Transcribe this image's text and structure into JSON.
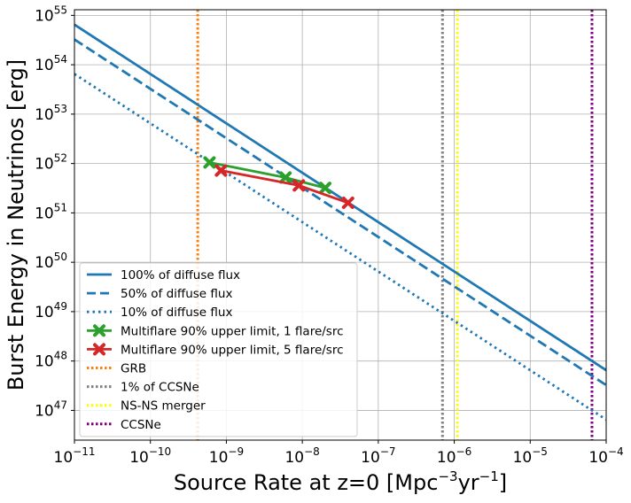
{
  "chart_data": {
    "type": "line",
    "xlabel_main": "Source Rate at z=0 [Mpc",
    "xlabel_sup1": "−3",
    "xlabel_mid": "yr",
    "xlabel_sup2": "−1",
    "xlabel_end": "]",
    "ylabel": "Burst Energy in Neutrinos [erg]",
    "x_scale": "log",
    "y_scale": "log",
    "xlim": [
      1e-11,
      0.0001
    ],
    "ylim": [
      2.5e+46,
      1.3e+55
    ],
    "grid": true,
    "legend_position": "lower-left",
    "x_ticks": [
      {
        "exp": -11,
        "base": "10",
        "sup": "−11"
      },
      {
        "exp": -10,
        "base": "10",
        "sup": "−10"
      },
      {
        "exp": -9,
        "base": "10",
        "sup": "−9"
      },
      {
        "exp": -8,
        "base": "10",
        "sup": "−8"
      },
      {
        "exp": -7,
        "base": "10",
        "sup": "−7"
      },
      {
        "exp": -6,
        "base": "10",
        "sup": "−6"
      },
      {
        "exp": -5,
        "base": "10",
        "sup": "−5"
      },
      {
        "exp": -4,
        "base": "10",
        "sup": "−4"
      }
    ],
    "y_ticks": [
      {
        "exp": 47,
        "base": "10",
        "sup": "47"
      },
      {
        "exp": 48,
        "base": "10",
        "sup": "48"
      },
      {
        "exp": 49,
        "base": "10",
        "sup": "49"
      },
      {
        "exp": 50,
        "base": "10",
        "sup": "50"
      },
      {
        "exp": 51,
        "base": "10",
        "sup": "51"
      },
      {
        "exp": 52,
        "base": "10",
        "sup": "52"
      },
      {
        "exp": 53,
        "base": "10",
        "sup": "53"
      },
      {
        "exp": 54,
        "base": "10",
        "sup": "54"
      },
      {
        "exp": 55,
        "base": "10",
        "sup": "55"
      }
    ],
    "series": [
      {
        "name": "100% of diffuse flux",
        "style": "solid",
        "color": "#1f77b4",
        "x": [
          1e-11,
          0.0001
        ],
        "y": [
          6.5e+54,
          6.5e+47
        ]
      },
      {
        "name": "50% of diffuse flux",
        "style": "dashed",
        "color": "#1f77b4",
        "x": [
          1e-11,
          0.0001
        ],
        "y": [
          3.25e+54,
          3.25e+47
        ]
      },
      {
        "name": "10% of diffuse flux",
        "style": "dotted",
        "color": "#1f77b4",
        "x": [
          1e-11,
          0.0001
        ],
        "y": [
          6.5e+53,
          6.5e+46
        ]
      },
      {
        "name": "Multiflare 90% upper limit, 1 flare/src",
        "style": "solid-marker",
        "color": "#2ca02c",
        "x": [
          6e-10,
          6e-09,
          2e-08
        ],
        "y": [
          1.05e+52,
          5.2e+51,
          3.2e+51
        ]
      },
      {
        "name": "Multiflare 90% upper limit, 5 flare/src",
        "style": "solid-marker",
        "color": "#d62728",
        "x": [
          8.5e-10,
          9e-09,
          4e-08
        ],
        "y": [
          7.2e+51,
          3.6e+51,
          1.6e+51
        ]
      }
    ],
    "vlines": [
      {
        "name": "GRB",
        "x": 4.2e-10,
        "color": "#ff7f0e"
      },
      {
        "name": "1% of CCSNe",
        "x": 7e-07,
        "color": "#808080"
      },
      {
        "name": "NS-NS merger",
        "x": 1.1e-06,
        "color": "#ffff00"
      },
      {
        "name": "CCSNe",
        "x": 6.5e-05,
        "color": "#800080"
      }
    ]
  }
}
